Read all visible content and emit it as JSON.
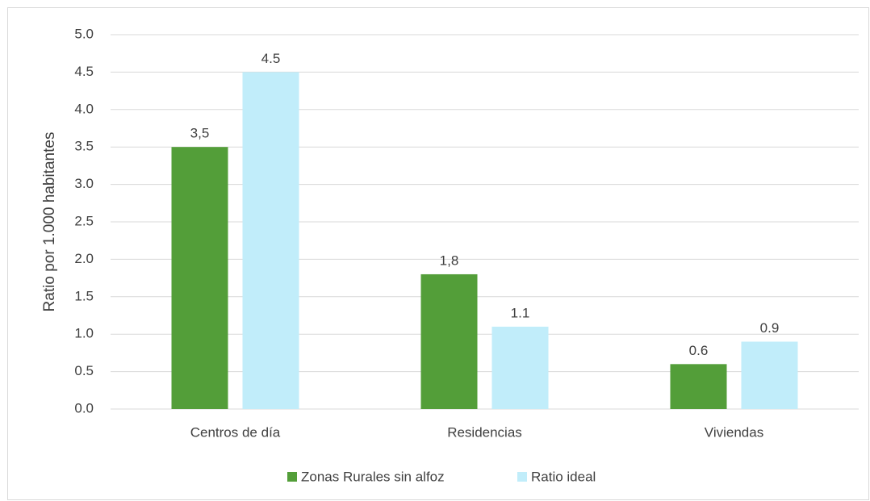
{
  "chart_data": {
    "type": "bar",
    "y_label": "Ratio por 1.000 habitantes",
    "categories": [
      "Centros de día",
      "Residencias",
      "Viviendas"
    ],
    "series": [
      {
        "name": "Zonas Rurales sin alfoz",
        "color": "#539e39",
        "values": [
          3.5,
          1.8,
          0.6
        ],
        "value_labels": [
          "3,5",
          "1,8",
          "0.6"
        ]
      },
      {
        "name": "Ratio ideal",
        "color": "#c1edfa",
        "values": [
          4.5,
          1.1,
          0.9
        ]
      }
    ],
    "ylim": [
      0,
      5
    ],
    "yticks": [
      {
        "value": 0,
        "label": "0.0"
      },
      0.5,
      {
        "value": 1,
        "label": "1.0"
      },
      1.5,
      {
        "value": 2,
        "label": "2.0"
      },
      2.5,
      {
        "value": 3,
        "label": "3.0"
      },
      3.5,
      {
        "value": 4,
        "label": "4.0"
      },
      4.5,
      {
        "value": 5,
        "label": "5.0"
      }
    ],
    "grid": true,
    "legend": "bottom"
  }
}
